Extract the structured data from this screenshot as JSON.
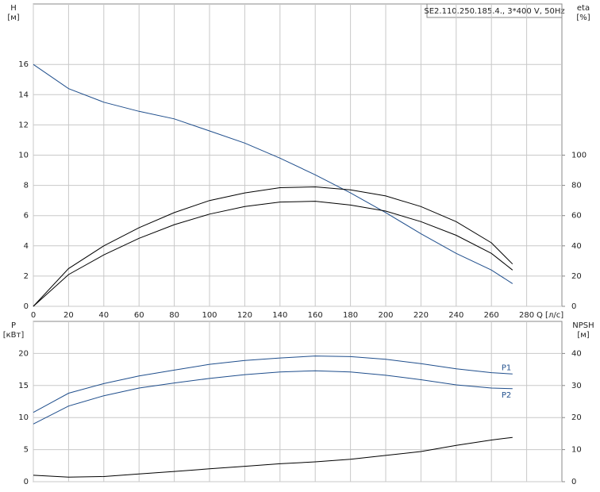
{
  "chart_data": [
    {
      "type": "line",
      "title": "SE2.110.250.185.4., 3*400 V, 50Hz",
      "y_label": "H",
      "y_unit": "[м]",
      "y2_label": "eta",
      "y2_unit": "[%]",
      "x_label": "Q [л/с]",
      "x": [
        0,
        20,
        40,
        60,
        80,
        100,
        120,
        140,
        160,
        180,
        200,
        220,
        240,
        260,
        272
      ],
      "xlim": [
        0,
        300
      ],
      "xticks": [
        0,
        20,
        40,
        60,
        80,
        100,
        120,
        140,
        160,
        180,
        200,
        220,
        240,
        260,
        280
      ],
      "ylim": [
        0,
        20
      ],
      "yticks": [
        0,
        2,
        4,
        6,
        8,
        10,
        12,
        14,
        16
      ],
      "y2lim": [
        0,
        200
      ],
      "y2ticks": [
        0,
        20,
        40,
        60,
        80,
        100
      ],
      "grid": true,
      "series": [
        {
          "color": "#1f4e8c",
          "values": [
            16,
            14.4,
            13.5,
            12.9,
            12.4,
            11.6,
            10.8,
            9.8,
            8.7,
            7.5,
            6.2,
            4.8,
            3.5,
            2.4,
            1.5
          ]
        },
        {
          "color": "#000000",
          "axis": "y2",
          "values": [
            0,
            25,
            40,
            52,
            62,
            70,
            75,
            78.5,
            79,
            77,
            73,
            66,
            56,
            42,
            28
          ]
        },
        {
          "color": "#000000",
          "axis": "y2",
          "values": [
            0,
            21,
            34,
            45,
            54,
            61,
            66,
            69,
            69.5,
            67,
            63,
            56,
            47,
            35,
            24
          ]
        }
      ]
    },
    {
      "type": "line",
      "y_label": "P",
      "y_unit": "[кВт]",
      "y2_label": "NPSH",
      "y2_unit": "[м]",
      "x": [
        0,
        20,
        40,
        60,
        80,
        100,
        120,
        140,
        160,
        180,
        200,
        220,
        240,
        260,
        272
      ],
      "xlim": [
        0,
        300
      ],
      "ylim": [
        0,
        25
      ],
      "yticks": [
        0,
        5,
        10,
        15,
        20
      ],
      "y2lim": [
        0,
        50
      ],
      "y2ticks": [
        0,
        10,
        20,
        30,
        40
      ],
      "grid": true,
      "series": [
        {
          "name": "P1",
          "color": "#1f4e8c",
          "values": [
            10.8,
            13.8,
            15.3,
            16.5,
            17.4,
            18.3,
            18.9,
            19.3,
            19.6,
            19.5,
            19.1,
            18.4,
            17.6,
            17.0,
            16.8
          ]
        },
        {
          "name": "P2",
          "color": "#1f4e8c",
          "values": [
            9.0,
            11.8,
            13.4,
            14.6,
            15.4,
            16.1,
            16.7,
            17.1,
            17.3,
            17.1,
            16.6,
            15.9,
            15.1,
            14.6,
            14.5
          ]
        },
        {
          "color": "#000000",
          "axis": "y2",
          "values": [
            2.0,
            1.4,
            1.6,
            2.4,
            3.2,
            4.0,
            4.8,
            5.6,
            6.2,
            7.0,
            8.2,
            9.4,
            11.3,
            13.0,
            13.8
          ]
        }
      ]
    }
  ]
}
